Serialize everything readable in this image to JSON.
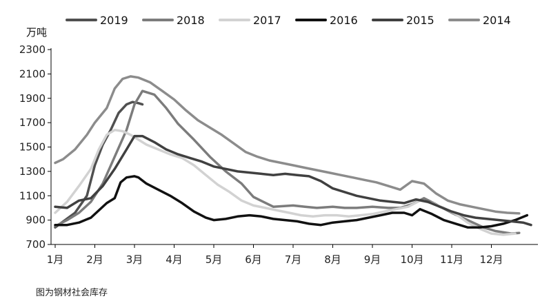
{
  "caption": "图为钢材社会库存",
  "chart_data": {
    "type": "line",
    "ylabel": "万吨",
    "ylim": [
      700,
      2300
    ],
    "yticks": [
      700,
      900,
      1100,
      1300,
      1500,
      1700,
      1900,
      2100,
      2300
    ],
    "xlim": [
      1,
      13
    ],
    "x_ticks": [
      {
        "x": 1,
        "label": "1月"
      },
      {
        "x": 2,
        "label": "2月"
      },
      {
        "x": 3,
        "label": "3月"
      },
      {
        "x": 4,
        "label": "4月"
      },
      {
        "x": 5,
        "label": "5月"
      },
      {
        "x": 6,
        "label": "6月"
      },
      {
        "x": 7,
        "label": "7月"
      },
      {
        "x": 8,
        "label": "8月"
      },
      {
        "x": 9,
        "label": "9月"
      },
      {
        "x": 10,
        "label": "10月"
      },
      {
        "x": 11,
        "label": "11月"
      },
      {
        "x": 12,
        "label": "12月"
      }
    ],
    "grid": false,
    "legend_position": "top",
    "series": [
      {
        "name": "2019",
        "color": "#505050",
        "width": 3.5,
        "x": [
          1.0,
          1.5,
          1.8,
          2.0,
          2.2,
          2.4,
          2.6,
          2.8,
          2.95,
          3.1,
          3.2
        ],
        "y": [
          840,
          960,
          1100,
          1350,
          1520,
          1640,
          1780,
          1850,
          1870,
          1860,
          1850
        ]
      },
      {
        "name": "2018",
        "color": "#7c7c7c",
        "width": 3.5,
        "x": [
          1.0,
          1.3,
          1.6,
          1.9,
          2.2,
          2.5,
          2.8,
          3.0,
          3.2,
          3.5,
          3.8,
          4.1,
          4.5,
          4.9,
          5.3,
          5.7,
          6.0,
          6.5,
          7.0,
          7.3,
          7.6,
          8.0,
          8.3,
          8.6,
          9.0,
          9.4,
          9.7,
          10.0,
          10.3,
          10.6,
          11.0,
          11.4,
          11.8,
          12.1,
          12.5,
          12.7
        ],
        "y": [
          850,
          900,
          960,
          1050,
          1200,
          1420,
          1640,
          1850,
          1960,
          1930,
          1820,
          1690,
          1560,
          1420,
          1300,
          1200,
          1090,
          1010,
          1020,
          1010,
          1000,
          1010,
          1000,
          1000,
          1010,
          1000,
          1000,
          1030,
          1080,
          1030,
          960,
          900,
          840,
          810,
          790,
          795
        ]
      },
      {
        "name": "2017",
        "color": "#d2d2d2",
        "width": 3.5,
        "x": [
          1.0,
          1.3,
          1.6,
          1.9,
          2.1,
          2.3,
          2.5,
          2.7,
          2.9,
          3.1,
          3.3,
          3.6,
          3.9,
          4.2,
          4.5,
          4.8,
          5.1,
          5.4,
          5.7,
          6.0,
          6.3,
          6.6,
          6.9,
          7.2,
          7.5,
          7.8,
          8.1,
          8.4,
          8.7,
          9.0,
          9.3,
          9.6,
          9.9,
          10.2,
          10.5,
          10.8,
          11.1,
          11.4,
          11.7,
          12.0,
          12.3,
          12.6
        ],
        "y": [
          960,
          1050,
          1180,
          1320,
          1480,
          1600,
          1640,
          1630,
          1600,
          1560,
          1520,
          1480,
          1440,
          1410,
          1350,
          1270,
          1190,
          1130,
          1060,
          1020,
          1000,
          980,
          960,
          940,
          930,
          940,
          940,
          930,
          940,
          950,
          970,
          990,
          1010,
          1060,
          1040,
          1000,
          950,
          880,
          830,
          790,
          780,
          790
        ]
      },
      {
        "name": "2016",
        "color": "#111111",
        "width": 3.5,
        "x": [
          1.0,
          1.3,
          1.6,
          1.9,
          2.1,
          2.3,
          2.5,
          2.65,
          2.8,
          3.0,
          3.1,
          3.3,
          3.6,
          3.9,
          4.2,
          4.5,
          4.8,
          5.0,
          5.3,
          5.6,
          5.9,
          6.2,
          6.5,
          6.8,
          7.1,
          7.4,
          7.7,
          8.0,
          8.3,
          8.6,
          8.9,
          9.2,
          9.5,
          9.8,
          10.0,
          10.2,
          10.5,
          10.8,
          11.1,
          11.4,
          11.7,
          12.0,
          12.3,
          12.6,
          12.9
        ],
        "y": [
          860,
          860,
          880,
          920,
          980,
          1040,
          1080,
          1210,
          1250,
          1260,
          1250,
          1200,
          1150,
          1100,
          1040,
          970,
          920,
          900,
          910,
          930,
          940,
          930,
          910,
          900,
          890,
          870,
          860,
          880,
          890,
          900,
          920,
          940,
          960,
          960,
          940,
          990,
          950,
          900,
          870,
          840,
          840,
          850,
          870,
          900,
          940
        ]
      },
      {
        "name": "2015",
        "color": "#404040",
        "width": 3.5,
        "x": [
          1.0,
          1.3,
          1.6,
          1.9,
          2.2,
          2.5,
          2.8,
          3.0,
          3.2,
          3.5,
          3.8,
          4.1,
          4.4,
          4.7,
          5.0,
          5.3,
          5.6,
          5.9,
          6.2,
          6.5,
          6.8,
          7.1,
          7.4,
          7.7,
          8.0,
          8.3,
          8.6,
          8.9,
          9.2,
          9.5,
          9.8,
          10.1,
          10.4,
          10.7,
          11.0,
          11.3,
          11.6,
          11.9,
          12.2,
          12.5,
          12.8,
          13.0
        ],
        "y": [
          1010,
          1000,
          1060,
          1080,
          1180,
          1320,
          1480,
          1590,
          1590,
          1540,
          1480,
          1440,
          1410,
          1380,
          1340,
          1320,
          1300,
          1290,
          1280,
          1270,
          1280,
          1270,
          1260,
          1220,
          1160,
          1130,
          1100,
          1080,
          1060,
          1050,
          1040,
          1070,
          1050,
          1010,
          970,
          940,
          920,
          910,
          900,
          890,
          880,
          860
        ]
      },
      {
        "name": "2014",
        "color": "#8c8c8c",
        "width": 3.5,
        "x": [
          1.0,
          1.2,
          1.5,
          1.8,
          2.0,
          2.3,
          2.5,
          2.7,
          2.9,
          3.1,
          3.4,
          3.7,
          4.0,
          4.3,
          4.6,
          4.9,
          5.2,
          5.5,
          5.8,
          6.1,
          6.4,
          6.7,
          7.0,
          7.3,
          7.6,
          7.9,
          8.2,
          8.5,
          8.8,
          9.1,
          9.4,
          9.7,
          10.0,
          10.3,
          10.6,
          10.9,
          11.2,
          11.5,
          11.8,
          12.1,
          12.4,
          12.7
        ],
        "y": [
          1370,
          1400,
          1480,
          1600,
          1700,
          1820,
          1980,
          2060,
          2080,
          2070,
          2030,
          1960,
          1890,
          1800,
          1720,
          1660,
          1600,
          1530,
          1460,
          1420,
          1390,
          1370,
          1350,
          1330,
          1310,
          1290,
          1270,
          1250,
          1230,
          1210,
          1180,
          1150,
          1220,
          1200,
          1120,
          1060,
          1030,
          1010,
          990,
          970,
          960,
          955
        ]
      }
    ]
  }
}
